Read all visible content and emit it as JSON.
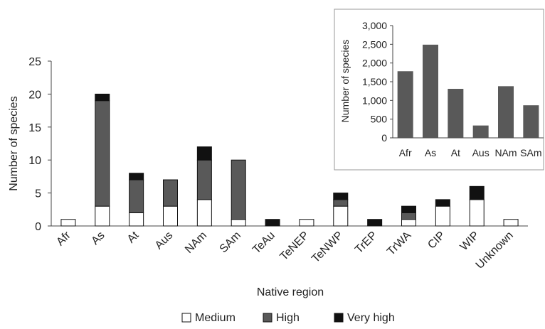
{
  "chart_data": [
    {
      "type": "bar",
      "stacked": true,
      "xlabel": "Native region",
      "ylabel": "Number of species",
      "ylim": [
        0,
        25
      ],
      "yticks": [
        "0",
        "5",
        "10",
        "15",
        "20",
        "25"
      ],
      "categories": [
        "Afr",
        "As",
        "At",
        "Aus",
        "NAm",
        "SAm",
        "TeAu",
        "TeNEP",
        "TeNWP",
        "TrEP",
        "TrWA",
        "CIP",
        "WIP",
        "Unknown"
      ],
      "series": [
        {
          "name": "Medium",
          "color": "#ffffff",
          "values": [
            1,
            3,
            2,
            3,
            4,
            1,
            0,
            1,
            3,
            0,
            1,
            3,
            4,
            1
          ]
        },
        {
          "name": "High",
          "color": "#595959",
          "values": [
            0,
            16,
            5,
            4,
            6,
            9,
            0,
            0,
            1,
            0,
            1,
            0,
            0,
            0
          ]
        },
        {
          "name": "Very high",
          "color": "#111111",
          "values": [
            0,
            1,
            1,
            0,
            2,
            0,
            1,
            0,
            1,
            1,
            1,
            1,
            2,
            0
          ]
        }
      ],
      "legend": "bottom",
      "grid": false
    },
    {
      "type": "bar",
      "inset": true,
      "ylabel": "Number of species",
      "ylim": [
        0,
        3000
      ],
      "yticks": [
        "0",
        "500",
        "1,000",
        "1,500",
        "2,000",
        "2,500",
        "3,000"
      ],
      "categories": [
        "Afr",
        "As",
        "At",
        "Aus",
        "NAm",
        "SAm"
      ],
      "values": [
        1780,
        2490,
        1310,
        330,
        1380,
        870
      ],
      "color": "#595959",
      "grid": false
    }
  ]
}
